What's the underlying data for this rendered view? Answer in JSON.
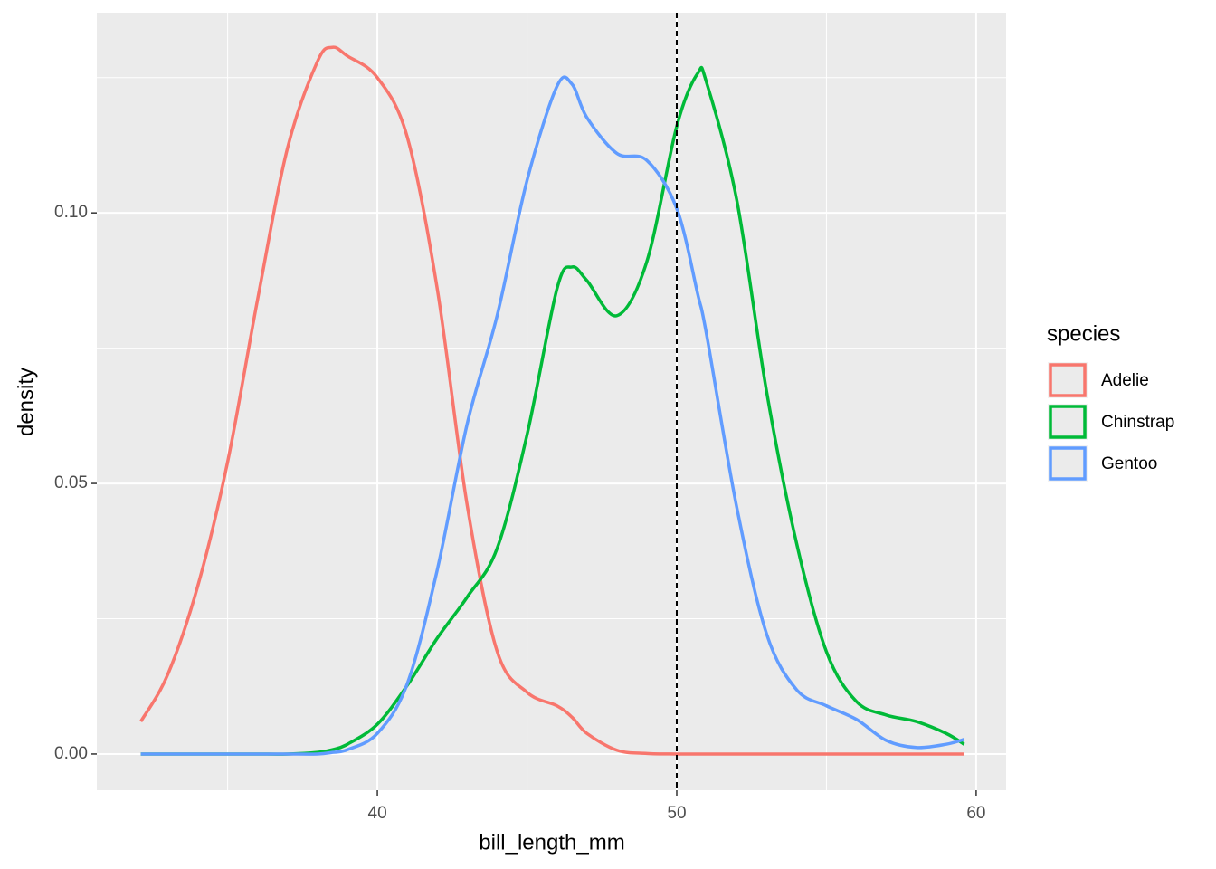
{
  "chart_data": {
    "type": "line",
    "curve": "smooth",
    "x_label": "bill_length_mm",
    "y_label": "density",
    "legend_title": "species",
    "legend_position": "right",
    "x": [
      32.1,
      33,
      34,
      35,
      36,
      37,
      38,
      38.5,
      39,
      40,
      41,
      42,
      43,
      44,
      45,
      46,
      46.5,
      47,
      48,
      49,
      50,
      50.7,
      51,
      52,
      53,
      54,
      55,
      56,
      57,
      58,
      59,
      59.6
    ],
    "series": [
      {
        "name": "Adelie",
        "color": "#f8766d",
        "values": [
          0.006,
          0.0147,
          0.031,
          0.054,
          0.084,
          0.112,
          0.128,
          0.1306,
          0.129,
          0.125,
          0.114,
          0.086,
          0.046,
          0.019,
          0.0114,
          0.0089,
          0.0068,
          0.0038,
          0.0007,
          0.0001,
          0,
          0,
          0,
          0,
          0,
          0,
          0,
          0,
          0,
          0,
          0,
          0
        ]
      },
      {
        "name": "Chinstrap",
        "color": "#00ba38",
        "values": [
          0,
          0,
          0,
          0,
          0,
          0,
          0.0003,
          0.0008,
          0.0018,
          0.0055,
          0.0127,
          0.0214,
          0.029,
          0.038,
          0.059,
          0.086,
          0.09,
          0.0875,
          0.081,
          0.091,
          0.116,
          0.1258,
          0.124,
          0.1025,
          0.067,
          0.039,
          0.0189,
          0.0097,
          0.0072,
          0.006,
          0.0038,
          0.0018
        ]
      },
      {
        "name": "Gentoo",
        "color": "#619cff",
        "values": [
          0,
          0,
          0,
          0,
          0,
          0,
          0,
          0.0003,
          0.0008,
          0.0038,
          0.013,
          0.034,
          0.061,
          0.081,
          0.106,
          0.1234,
          0.1238,
          0.1176,
          0.111,
          0.1097,
          0.1008,
          0.085,
          0.0774,
          0.0457,
          0.0222,
          0.0119,
          0.0089,
          0.0064,
          0.0025,
          0.0012,
          0.0018,
          0.0027
        ]
      }
    ],
    "vline": 50,
    "xlim": [
      30.63,
      61.0
    ],
    "ylim": [
      -0.0067,
      0.137
    ],
    "xticks": [
      40,
      50,
      60
    ],
    "yticks": [
      {
        "value": 0,
        "label": "0.00"
      },
      {
        "value": 0.05,
        "label": "0.05"
      },
      {
        "value": 0.1,
        "label": "0.10"
      }
    ],
    "xminor": [
      35,
      45,
      55
    ],
    "yminor": [
      0.025,
      0.075,
      0.125
    ],
    "grid": true
  }
}
